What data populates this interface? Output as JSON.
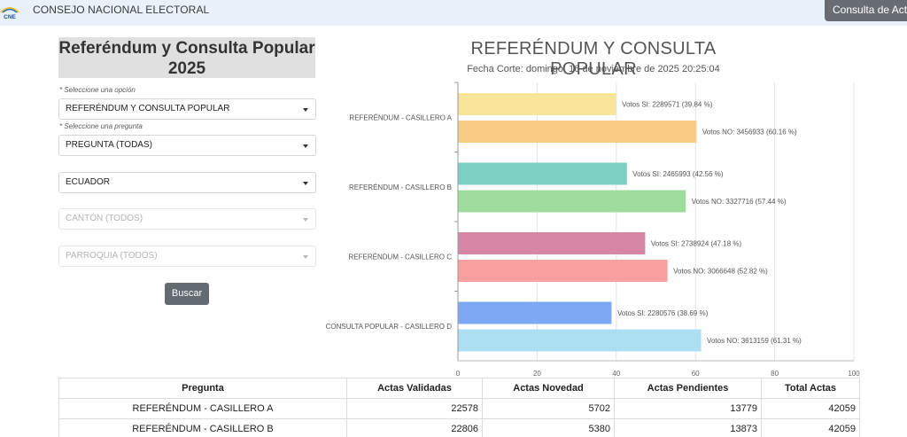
{
  "nav": {
    "brand": "CONSEJO NACIONAL ELECTORAL",
    "logo_text": "CNE",
    "button_label": "Consulta de Acta"
  },
  "form": {
    "title": "Referéndum y Consulta Popular 2025",
    "hint_option": "* Seleccione una opción",
    "option_value": "REFERÉNDUM Y CONSULTA POPULAR",
    "hint_question": "* Seleccione una pregunta",
    "question_value": "PREGUNTA (TODAS)",
    "province_value": "ECUADOR",
    "canton_placeholder": "CANTÓN (TODOS)",
    "parish_placeholder": "PARROQUIA (TODOS)",
    "search_label": "Buscar"
  },
  "chart_data": {
    "type": "bar",
    "orientation": "horizontal",
    "title": "REFERÉNDUM Y CONSULTA POPULAR",
    "subtitle": "Fecha Corte: domingo, 16 de noviembre de 2025 20:25:04",
    "categories": [
      "REFERÉNDUM - CASILLERO A",
      "REFERÉNDUM - CASILLERO B",
      "REFERÉNDUM - CASILLERO C",
      "CONSULTA POPULAR - CASILLERO D"
    ],
    "xlim": [
      0,
      100
    ],
    "xticks": [
      0,
      20,
      40,
      60,
      80,
      100
    ],
    "grid": true,
    "bars": [
      {
        "category": 0,
        "value": 39.84,
        "label": "Votos SI: 2289571 (39.84 %)",
        "color": "#f9e59a"
      },
      {
        "category": 0,
        "value": 60.16,
        "label": "Votos NO: 3456933 (60.16 %)",
        "color": "#f8cc87"
      },
      {
        "category": 1,
        "value": 42.56,
        "label": "Votos SI: 2465993 (42.56 %)",
        "color": "#7ecfc3"
      },
      {
        "category": 1,
        "value": 57.44,
        "label": "Votos NO: 3327716 (57.44 %)",
        "color": "#9edd9f"
      },
      {
        "category": 2,
        "value": 47.18,
        "label": "Votos SI: 2738924 (47.18 %)",
        "color": "#d687a5"
      },
      {
        "category": 2,
        "value": 52.82,
        "label": "Votos NO: 3066648 (52.82 %)",
        "color": "#fba0a1"
      },
      {
        "category": 3,
        "value": 38.69,
        "label": "Votos SI: 2280576 (38.69 %)",
        "color": "#7ea8f4"
      },
      {
        "category": 3,
        "value": 61.31,
        "label": "Votos NO: 3613159 (61.31 %)",
        "color": "#addff3"
      }
    ]
  },
  "table": {
    "headers": [
      "Pregunta",
      "Actas Validadas",
      "Actas Novedad",
      "Actas Pendientes",
      "Total Actas"
    ],
    "rows": [
      [
        "REFERÉNDUM - CASILLERO A",
        "22578",
        "5702",
        "13779",
        "42059"
      ],
      [
        "REFERÉNDUM - CASILLERO B",
        "22806",
        "5380",
        "13873",
        "42059"
      ]
    ]
  }
}
